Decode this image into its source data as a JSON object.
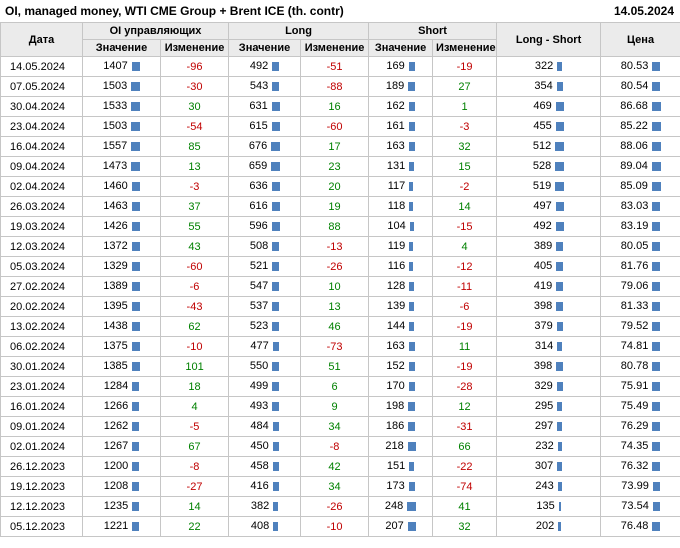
{
  "chart_data": {
    "type": "table",
    "title": "OI, managed money, WTI CME Group + Brent ICE (th. contr)",
    "as_of_date": "14.05.2024",
    "column_groups": [
      "Дата",
      "OI управляющих",
      "Long",
      "Short",
      "Long - Short",
      "Цена"
    ],
    "sub_columns": [
      "Значение",
      "Изменение"
    ],
    "headers": {
      "date": "Дата",
      "oi_group": "OI управляющих",
      "long_group": "Long",
      "short_group": "Short",
      "value": "Значение",
      "change": "Изменение",
      "long_short": "Long - Short",
      "price": "Цена"
    },
    "rows": [
      {
        "date": "14.05.2024",
        "oi": 1407,
        "oi_chg": -96,
        "long": 492,
        "long_chg": -51,
        "short": 169,
        "short_chg": -19,
        "long_short": 322,
        "price": "80.53"
      },
      {
        "date": "07.05.2024",
        "oi": 1503,
        "oi_chg": -30,
        "long": 543,
        "long_chg": -88,
        "short": 189,
        "short_chg": 27,
        "long_short": 354,
        "price": "80.54"
      },
      {
        "date": "30.04.2024",
        "oi": 1533,
        "oi_chg": 30,
        "long": 631,
        "long_chg": 16,
        "short": 162,
        "short_chg": 1,
        "long_short": 469,
        "price": "86.68"
      },
      {
        "date": "23.04.2024",
        "oi": 1503,
        "oi_chg": -54,
        "long": 615,
        "long_chg": -60,
        "short": 161,
        "short_chg": -3,
        "long_short": 455,
        "price": "85.22"
      },
      {
        "date": "16.04.2024",
        "oi": 1557,
        "oi_chg": 85,
        "long": 676,
        "long_chg": 17,
        "short": 163,
        "short_chg": 32,
        "long_short": 512,
        "price": "88.06"
      },
      {
        "date": "09.04.2024",
        "oi": 1473,
        "oi_chg": 13,
        "long": 659,
        "long_chg": 23,
        "short": 131,
        "short_chg": 15,
        "long_short": 528,
        "price": "89.04"
      },
      {
        "date": "02.04.2024",
        "oi": 1460,
        "oi_chg": -3,
        "long": 636,
        "long_chg": 20,
        "short": 117,
        "short_chg": -2,
        "long_short": 519,
        "price": "85.09"
      },
      {
        "date": "26.03.2024",
        "oi": 1463,
        "oi_chg": 37,
        "long": 616,
        "long_chg": 19,
        "short": 118,
        "short_chg": 14,
        "long_short": 497,
        "price": "83.03"
      },
      {
        "date": "19.03.2024",
        "oi": 1426,
        "oi_chg": 55,
        "long": 596,
        "long_chg": 88,
        "short": 104,
        "short_chg": -15,
        "long_short": 492,
        "price": "83.19"
      },
      {
        "date": "12.03.2024",
        "oi": 1372,
        "oi_chg": 43,
        "long": 508,
        "long_chg": -13,
        "short": 119,
        "short_chg": 4,
        "long_short": 389,
        "price": "80.05"
      },
      {
        "date": "05.03.2024",
        "oi": 1329,
        "oi_chg": -60,
        "long": 521,
        "long_chg": -26,
        "short": 116,
        "short_chg": -12,
        "long_short": 405,
        "price": "81.76"
      },
      {
        "date": "27.02.2024",
        "oi": 1389,
        "oi_chg": -6,
        "long": 547,
        "long_chg": 10,
        "short": 128,
        "short_chg": -11,
        "long_short": 419,
        "price": "79.06"
      },
      {
        "date": "20.02.2024",
        "oi": 1395,
        "oi_chg": -43,
        "long": 537,
        "long_chg": 13,
        "short": 139,
        "short_chg": -6,
        "long_short": 398,
        "price": "81.33"
      },
      {
        "date": "13.02.2024",
        "oi": 1438,
        "oi_chg": 62,
        "long": 523,
        "long_chg": 46,
        "short": 144,
        "short_chg": -19,
        "long_short": 379,
        "price": "79.52"
      },
      {
        "date": "06.02.2024",
        "oi": 1375,
        "oi_chg": -10,
        "long": 477,
        "long_chg": -73,
        "short": 163,
        "short_chg": 11,
        "long_short": 314,
        "price": "74.81"
      },
      {
        "date": "30.01.2024",
        "oi": 1385,
        "oi_chg": 101,
        "long": 550,
        "long_chg": 51,
        "short": 152,
        "short_chg": -19,
        "long_short": 398,
        "price": "80.78"
      },
      {
        "date": "23.01.2024",
        "oi": 1284,
        "oi_chg": 18,
        "long": 499,
        "long_chg": 6,
        "short": 170,
        "short_chg": -28,
        "long_short": 329,
        "price": "75.91"
      },
      {
        "date": "16.01.2024",
        "oi": 1266,
        "oi_chg": 4,
        "long": 493,
        "long_chg": 9,
        "short": 198,
        "short_chg": 12,
        "long_short": 295,
        "price": "75.49"
      },
      {
        "date": "09.01.2024",
        "oi": 1262,
        "oi_chg": -5,
        "long": 484,
        "long_chg": 34,
        "short": 186,
        "short_chg": -31,
        "long_short": 297,
        "price": "76.29"
      },
      {
        "date": "02.01.2024",
        "oi": 1267,
        "oi_chg": 67,
        "long": 450,
        "long_chg": -8,
        "short": 218,
        "short_chg": 66,
        "long_short": 232,
        "price": "74.35"
      },
      {
        "date": "26.12.2023",
        "oi": 1200,
        "oi_chg": -8,
        "long": 458,
        "long_chg": 42,
        "short": 151,
        "short_chg": -22,
        "long_short": 307,
        "price": "76.32"
      },
      {
        "date": "19.12.2023",
        "oi": 1208,
        "oi_chg": -27,
        "long": 416,
        "long_chg": 34,
        "short": 173,
        "short_chg": -74,
        "long_short": 243,
        "price": "73.99"
      },
      {
        "date": "12.12.2023",
        "oi": 1235,
        "oi_chg": 14,
        "long": 382,
        "long_chg": -26,
        "short": 248,
        "short_chg": 41,
        "long_short": 135,
        "price": "73.54"
      },
      {
        "date": "05.12.2023",
        "oi": 1221,
        "oi_chg": 22,
        "long": 408,
        "long_chg": -10,
        "short": 207,
        "short_chg": 32,
        "long_short": 202,
        "price": "76.48"
      }
    ]
  },
  "style": {
    "negative_color": "#c00000",
    "positive_color": "#008000",
    "bar_color": "#4f81bd",
    "header_bg": "#ebebeb",
    "grid_color": "#c6c6c6"
  }
}
